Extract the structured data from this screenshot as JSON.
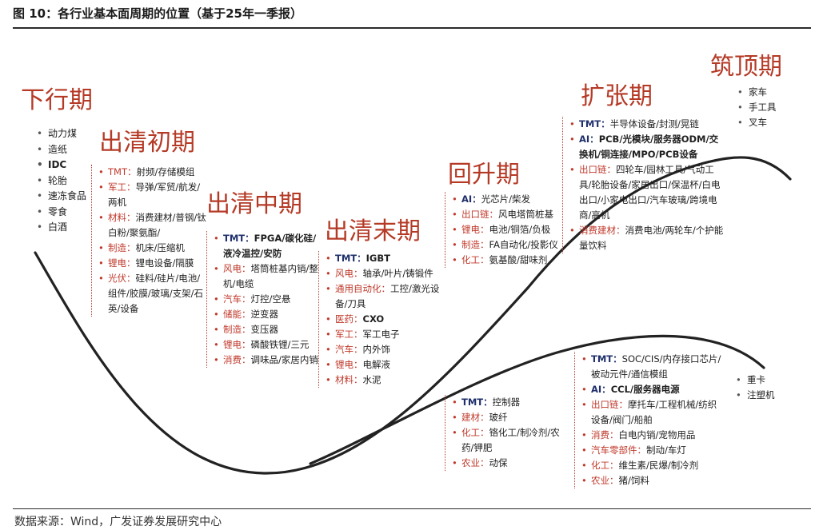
{
  "header": {
    "title": "图 10：各行业基本面周期的位置（基于25年一季报）"
  },
  "footer": {
    "source": "数据来源：Wind，广发证券发展研究中心"
  },
  "stages": {
    "down": "下行期",
    "early": "出清初期",
    "mid": "出清中期",
    "late": "出清末期",
    "recover": "回升期",
    "expand": "扩张期",
    "top": "筑顶期"
  },
  "down_list": [
    "动力煤",
    "造纸",
    "IDC",
    "轮胎",
    "速冻食品",
    "零食",
    "白酒"
  ],
  "early_list": [
    {
      "k": "TMT：",
      "v": "射频/存储模组"
    },
    {
      "k": "军工：",
      "v": "导弹/军贸/航发/两机"
    },
    {
      "k": "材料：",
      "v": "消费建材/普钢/钛白粉/聚氨酯/"
    },
    {
      "k": "制造：",
      "v": "机床/压缩机"
    },
    {
      "k": "锂电：",
      "v": "锂电设备/隔膜"
    },
    {
      "k": "光伏：",
      "v": "硅料/硅片/电池/组件/胶膜/玻璃/支架/石英/设备"
    }
  ],
  "mid_list": [
    {
      "k": "TMT：",
      "v": "FPGA/碳化硅/液冷温控/安防"
    },
    {
      "k": "风电：",
      "v": "塔筒桩基内销/整机/电缆"
    },
    {
      "k": "汽车：",
      "v": "灯控/空悬"
    },
    {
      "k": "储能：",
      "v": "逆变器"
    },
    {
      "k": "制造：",
      "v": "变压器"
    },
    {
      "k": "锂电：",
      "v": "磷酸铁锂/三元"
    },
    {
      "k": "消费：",
      "v": "调味品/家居内销"
    }
  ],
  "late_list": [
    {
      "k": "TMT：",
      "v": "IGBT"
    },
    {
      "k": "风电：",
      "v": "轴承/叶片/铸锻件"
    },
    {
      "k": "通用自动化：",
      "v": "工控/激光设备/刀具"
    },
    {
      "k": "医药：",
      "v": "CXO"
    },
    {
      "k": "军工：",
      "v": "军工电子"
    },
    {
      "k": "汽车：",
      "v": "内外饰"
    },
    {
      "k": "锂电：",
      "v": "电解液"
    },
    {
      "k": "材料：",
      "v": "水泥"
    }
  ],
  "recover_list": [
    {
      "k": "AI：",
      "v": "光芯片/柴发"
    },
    {
      "k": "出口链：",
      "v": "风电塔筒桩基"
    },
    {
      "k": "锂电：",
      "v": "电池/铜箔/负极"
    },
    {
      "k": "制造：",
      "v": "FA自动化/投影仪"
    },
    {
      "k": "化工：",
      "v": "氨基酸/甜味剂"
    }
  ],
  "expand_list": [
    {
      "k": "TMT：",
      "v": "半导体设备/封测/晃链"
    },
    {
      "k": "AI：",
      "v": "PCB/光模块/服务器ODM/交换机/铜连接/MPO/PCB设备"
    },
    {
      "k": "出口链：",
      "v": "四轮车/园林工具/气动工具/轮胎设备/家居出口/保温杯/白电出口/小家电出口/汽车玻璃/跨境电商/高机"
    },
    {
      "k": "消费建材：",
      "v": "消费电池/两轮车/个护能量饮料"
    }
  ],
  "top_list": [
    "家车",
    "手工具",
    "叉车"
  ],
  "lower_recover_list": [
    {
      "k": "TMT：",
      "v": "控制器"
    },
    {
      "k": "建材：",
      "v": "玻纤"
    },
    {
      "k": "化工：",
      "v": "铬化工/制冷剂/农药/钾肥"
    },
    {
      "k": "农业：",
      "v": "动保"
    }
  ],
  "lower_expand_list": [
    {
      "k": "TMT：",
      "v": "SOC/CIS/内存接口芯片/被动元件/通信模组"
    },
    {
      "k": "AI：",
      "v": "CCL/服务器电源"
    },
    {
      "k": "出口链：",
      "v": "摩托车/工程机械/纺织设备/阀门/船舶"
    },
    {
      "k": "消费：",
      "v": "白电内销/宠物用品"
    },
    {
      "k": "汽车零部件：",
      "v": "制动/车灯"
    },
    {
      "k": "化工：",
      "v": "维生素/民爆/制冷剂"
    },
    {
      "k": "农业：",
      "v": "猪/饲料"
    }
  ],
  "lower_top_list": [
    "重卡",
    "注塑机"
  ],
  "colors": {
    "stage_red": "#b53a26",
    "curve": "#222222",
    "key_red": "#c0392b",
    "tech_blue": "#1f2f6b"
  }
}
